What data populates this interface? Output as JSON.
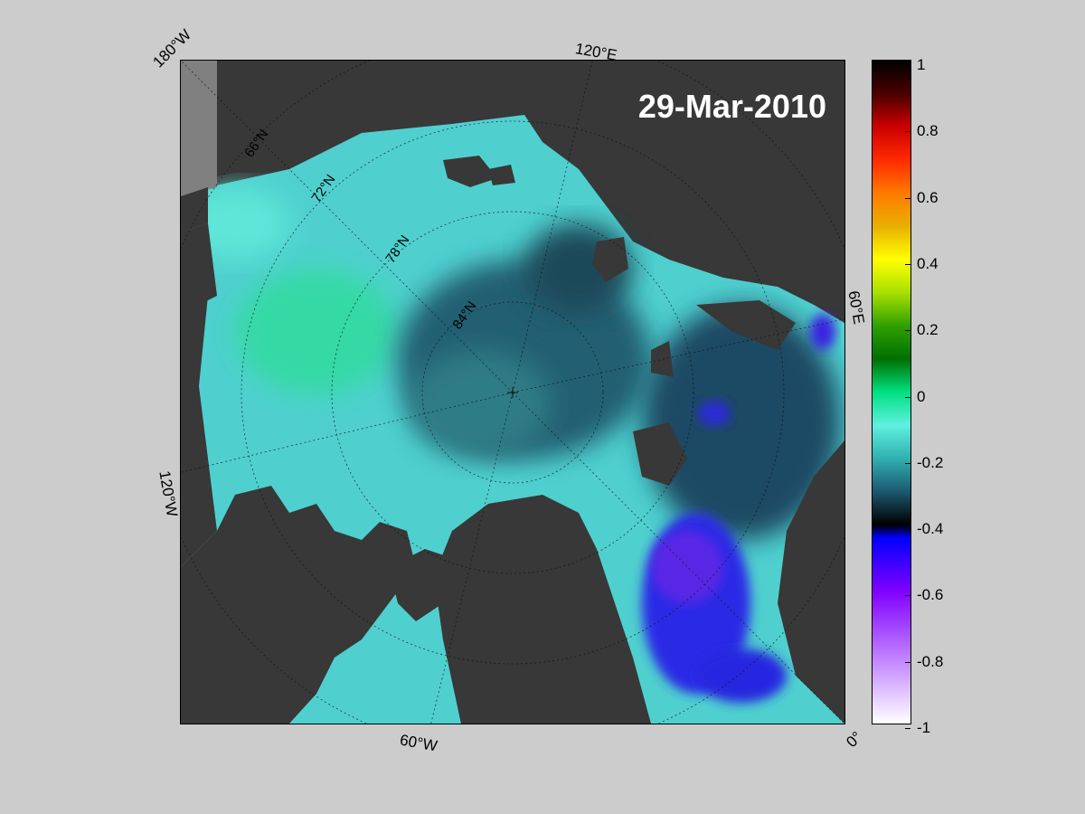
{
  "map": {
    "date": "29-Mar-2010",
    "longitude_labels": [
      "180°W",
      "120°E",
      "60°E",
      "0°",
      "60°W",
      "120°W"
    ],
    "latitude_labels": [
      "66°N",
      "72°N",
      "78°N",
      "84°N"
    ]
  },
  "colorbar": {
    "ticks": [
      "1",
      "0.8",
      "0.6",
      "0.4",
      "0.2",
      "0",
      "-0.2",
      "-0.4",
      "-0.6",
      "-0.8",
      "-1"
    ],
    "range": [
      -1,
      1
    ],
    "colors": {
      "land": "#383838",
      "land_gray": "#808080",
      "background": "#cccccc"
    }
  }
}
